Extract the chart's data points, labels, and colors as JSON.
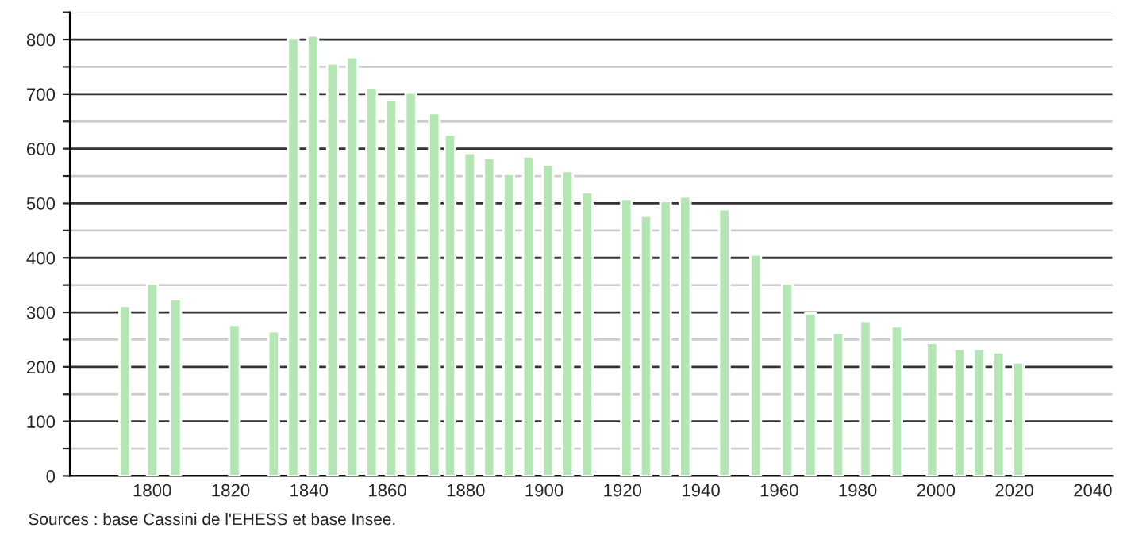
{
  "chart_data": {
    "type": "bar",
    "x": [
      1793,
      1800,
      1806,
      1821,
      1831,
      1836,
      1841,
      1846,
      1851,
      1856,
      1861,
      1866,
      1872,
      1876,
      1881,
      1886,
      1891,
      1896,
      1901,
      1906,
      1911,
      1921,
      1926,
      1931,
      1936,
      1946,
      1954,
      1962,
      1968,
      1975,
      1982,
      1990,
      1999,
      2006,
      2011,
      2016,
      2021
    ],
    "values": [
      312,
      353,
      324,
      277,
      265,
      803,
      807,
      756,
      768,
      712,
      689,
      704,
      665,
      626,
      592,
      583,
      554,
      586,
      571,
      559,
      520,
      508,
      477,
      504,
      512,
      489,
      406,
      353,
      298,
      262,
      284,
      274,
      244,
      233,
      233,
      227,
      208
    ],
    "color": "#b3e6b3",
    "xlim": [
      1779,
      2045
    ],
    "xticks": [
      1800,
      1820,
      1840,
      1860,
      1880,
      1900,
      1920,
      1940,
      1960,
      1980,
      2000,
      2020,
      2040
    ],
    "ylim": [
      0,
      850
    ],
    "yticks": [
      0,
      {
        "value": 50,
        "label": null
      },
      100,
      {
        "value": 150,
        "label": null
      },
      200,
      {
        "value": 250,
        "label": null
      },
      300,
      {
        "value": 350,
        "label": null
      },
      400,
      {
        "value": 450,
        "label": null
      },
      500,
      {
        "value": 550,
        "label": null
      },
      600,
      {
        "value": 650,
        "label": null
      },
      700,
      {
        "value": 750,
        "label": null
      },
      800,
      {
        "value": 850,
        "label": null
      }
    ],
    "grid": "y",
    "annotations": [
      "Sources : base Cassini de l'EHESS et base Insee."
    ]
  }
}
